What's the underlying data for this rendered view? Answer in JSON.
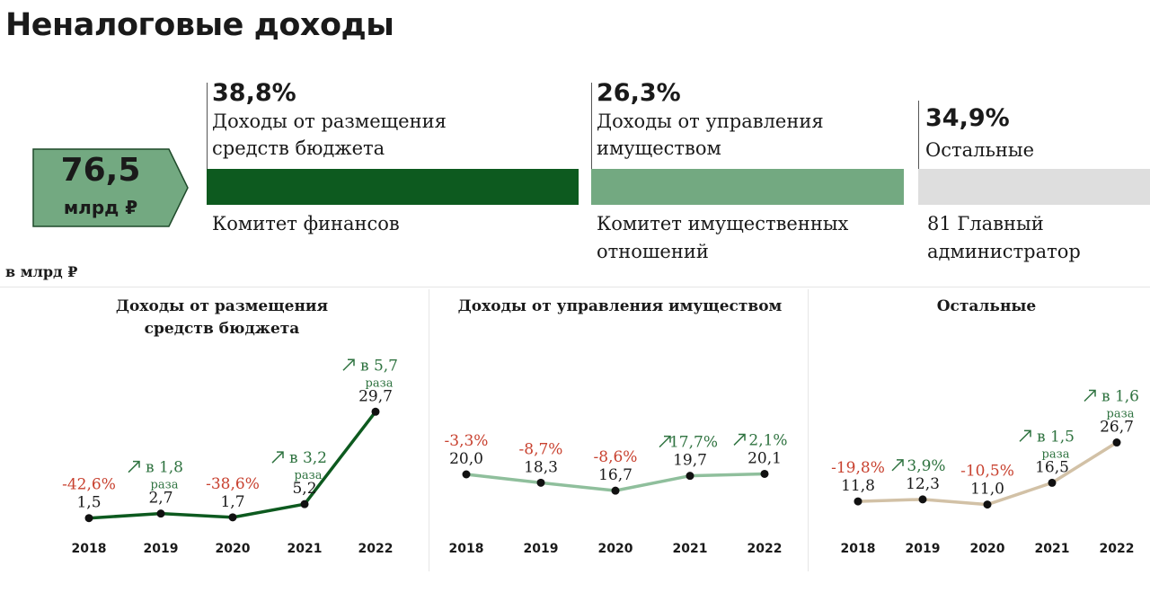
{
  "title": "Неналоговые доходы",
  "total": {
    "value": "76,5",
    "unit": "млрд ₽"
  },
  "units_note": "в млрд ₽",
  "colors": {
    "dark_green": "#0d5a1f",
    "mid_green": "#73a981",
    "grey": "#dedede",
    "line_green": "#0d5a1f",
    "line_light_green": "#8fbf9c",
    "line_beige": "#d2c1a6",
    "negative": "#c8412f",
    "positive": "#2f7340"
  },
  "segments": [
    {
      "pct": "38,8%",
      "label_lines": [
        "Доходы от размещения",
        "средств бюджета"
      ],
      "admin_lines": [
        "Комитет финансов"
      ]
    },
    {
      "pct": "26,3%",
      "label_lines": [
        "Доходы от управления",
        "имуществом"
      ],
      "admin_lines": [
        "Комитет имущественных",
        "отношений"
      ]
    },
    {
      "pct": "34,9%",
      "label_lines": [
        "Остальные"
      ],
      "admin_lines": [
        "81 Главный",
        "администратор"
      ]
    }
  ],
  "chart_data": [
    {
      "type": "line",
      "title_lines": [
        "Доходы от размещения",
        "средств бюджета"
      ],
      "x": [
        "2018",
        "2019",
        "2020",
        "2021",
        "2022"
      ],
      "values": [
        1.5,
        2.7,
        1.7,
        5.2,
        29.7
      ],
      "value_labels": [
        "1,5",
        "2,7",
        "1,7",
        "5,2",
        "29,7"
      ],
      "ylim": [
        0,
        31
      ],
      "changes": [
        {
          "text": "-42,6%",
          "sign": "neg"
        },
        {
          "text": "в 1,8",
          "sub": "раза",
          "sign": "pos"
        },
        {
          "text": "-38,6%",
          "sign": "neg"
        },
        {
          "text": "в 3,2",
          "sub": "раза",
          "sign": "pos"
        },
        {
          "text": "в 5,7",
          "sub": "раза",
          "sign": "pos"
        }
      ]
    },
    {
      "type": "line",
      "title_lines": [
        "Доходы от управления имуществом"
      ],
      "x": [
        "2018",
        "2019",
        "2020",
        "2021",
        "2022"
      ],
      "values": [
        20.0,
        18.3,
        16.7,
        19.7,
        20.1
      ],
      "value_labels": [
        "20,0",
        "18,3",
        "16,7",
        "19,7",
        "20,1"
      ],
      "ylim": [
        0,
        31
      ],
      "changes": [
        {
          "text": "-3,3%",
          "sign": "neg"
        },
        {
          "text": "-8,7%",
          "sign": "neg"
        },
        {
          "text": "-8,6%",
          "sign": "neg"
        },
        {
          "text": "17,7%",
          "sign": "pos"
        },
        {
          "text": "2,1%",
          "sign": "pos"
        }
      ]
    },
    {
      "type": "line",
      "title_lines": [
        "Остальные"
      ],
      "x": [
        "2018",
        "2019",
        "2020",
        "2021",
        "2022"
      ],
      "values": [
        11.8,
        12.3,
        11.0,
        16.5,
        26.7
      ],
      "value_labels": [
        "11,8",
        "12,3",
        "11,0",
        "16,5",
        "26,7"
      ],
      "ylim": [
        0,
        31
      ],
      "changes": [
        {
          "text": "-19,8%",
          "sign": "neg"
        },
        {
          "text": "3,9%",
          "sign": "pos"
        },
        {
          "text": "-10,5%",
          "sign": "neg"
        },
        {
          "text": "в 1,5",
          "sub": "раза",
          "sign": "pos"
        },
        {
          "text": "в 1,6",
          "sub": "раза",
          "sign": "pos"
        }
      ]
    }
  ]
}
